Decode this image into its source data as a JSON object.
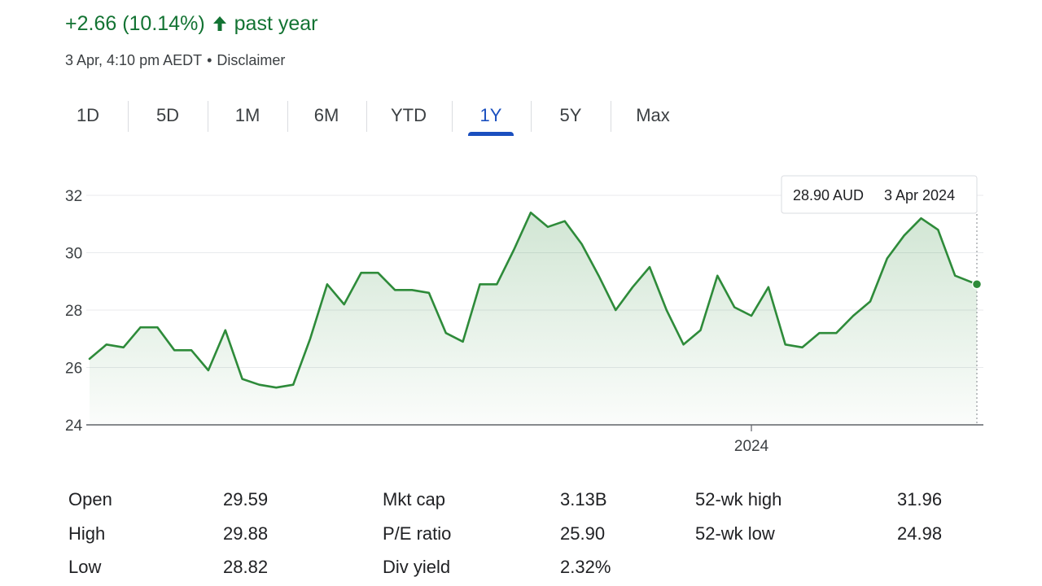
{
  "header": {
    "change_text": "+2.66 (10.14%)",
    "change_direction_icon": "arrow-up-icon",
    "change_period": "past year",
    "timestamp": "3 Apr, 4:10 pm AEDT",
    "separator": "•",
    "disclaimer_label": "Disclaimer"
  },
  "tabs": [
    {
      "label": "1D",
      "active": false
    },
    {
      "label": "5D",
      "active": false
    },
    {
      "label": "1M",
      "active": false
    },
    {
      "label": "6M",
      "active": false
    },
    {
      "label": "YTD",
      "active": false
    },
    {
      "label": "1Y",
      "active": true
    },
    {
      "label": "5Y",
      "active": false
    },
    {
      "label": "Max",
      "active": false
    }
  ],
  "tooltip": {
    "price": "28.90 AUD",
    "date": "3 Apr 2024"
  },
  "colors": {
    "positive": "#137333",
    "line": "#2e8b3a",
    "tab_active": "#1a4fbf",
    "grid": "#e8eaed"
  },
  "chart_data": {
    "type": "area",
    "xlabel": "",
    "ylabel": "",
    "ylim": [
      24,
      32
    ],
    "yticks": [
      24,
      26,
      28,
      30,
      32
    ],
    "xticks": [
      {
        "label": "2024",
        "x": "2024-01-01"
      }
    ],
    "x_range": [
      "2023-04-03",
      "2024-04-03"
    ],
    "grid": true,
    "x": [
      "2023-04-03",
      "2023-04-10",
      "2023-04-17",
      "2023-04-24",
      "2023-05-01",
      "2023-05-08",
      "2023-05-15",
      "2023-05-22",
      "2023-05-29",
      "2023-06-05",
      "2023-06-12",
      "2023-06-19",
      "2023-06-26",
      "2023-07-03",
      "2023-07-10",
      "2023-07-17",
      "2023-07-24",
      "2023-07-31",
      "2023-08-07",
      "2023-08-14",
      "2023-08-21",
      "2023-08-28",
      "2023-09-04",
      "2023-09-11",
      "2023-09-18",
      "2023-09-25",
      "2023-10-02",
      "2023-10-09",
      "2023-10-16",
      "2023-10-23",
      "2023-10-30",
      "2023-11-06",
      "2023-11-13",
      "2023-11-20",
      "2023-11-27",
      "2023-12-04",
      "2023-12-11",
      "2023-12-18",
      "2023-12-25",
      "2024-01-01",
      "2024-01-08",
      "2024-01-15",
      "2024-01-22",
      "2024-01-29",
      "2024-02-05",
      "2024-02-12",
      "2024-02-19",
      "2024-02-26",
      "2024-03-04",
      "2024-03-11",
      "2024-03-18",
      "2024-03-25",
      "2024-04-03"
    ],
    "values": [
      26.3,
      26.8,
      26.7,
      27.4,
      27.4,
      26.6,
      26.6,
      25.9,
      27.3,
      25.6,
      25.4,
      25.3,
      25.4,
      27.0,
      28.9,
      28.2,
      29.3,
      29.3,
      28.7,
      28.7,
      28.6,
      27.2,
      26.9,
      28.9,
      28.9,
      30.1,
      31.4,
      30.9,
      31.1,
      30.3,
      29.2,
      28.0,
      28.8,
      29.5,
      28.0,
      26.8,
      27.3,
      29.2,
      28.1,
      27.8,
      28.8,
      26.8,
      26.7,
      27.2,
      27.2,
      27.8,
      28.3,
      29.8,
      30.6,
      31.2,
      30.8,
      29.2,
      28.9
    ]
  },
  "stats": [
    {
      "label": "Open",
      "value": "29.59"
    },
    {
      "label": "High",
      "value": "29.88"
    },
    {
      "label": "Low",
      "value": "28.82"
    },
    {
      "label": "Mkt cap",
      "value": "3.13B"
    },
    {
      "label": "P/E ratio",
      "value": "25.90"
    },
    {
      "label": "Div yield",
      "value": "2.32%"
    },
    {
      "label": "52-wk high",
      "value": "31.96"
    },
    {
      "label": "52-wk low",
      "value": "24.98"
    }
  ]
}
